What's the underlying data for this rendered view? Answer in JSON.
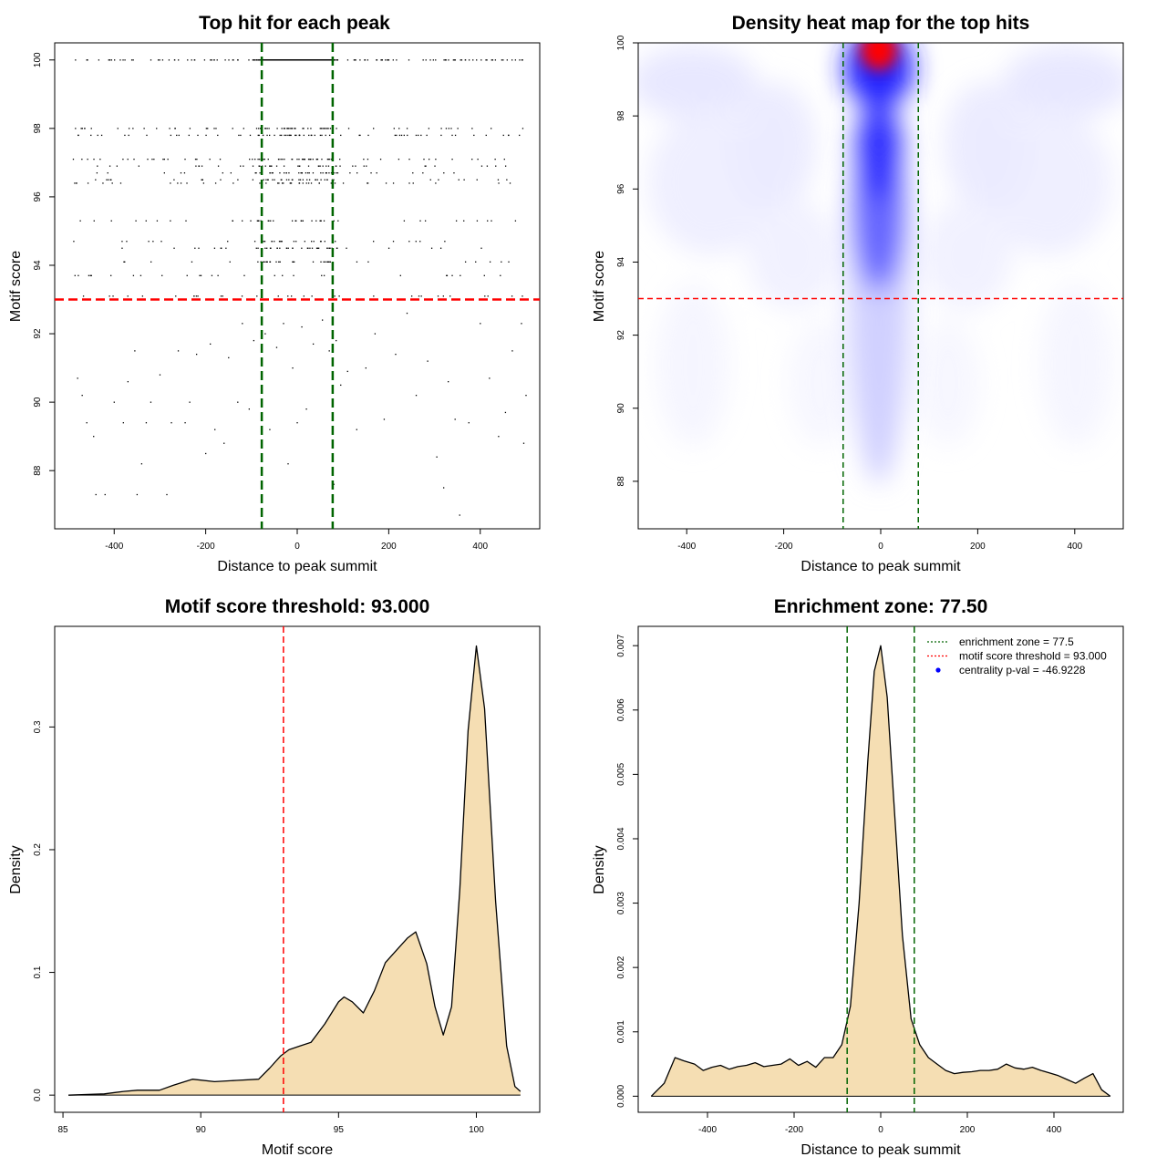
{
  "figure": {
    "panels": [
      "scatter",
      "heatmap",
      "score_density",
      "distance_density"
    ]
  },
  "chart_data": [
    {
      "id": "scatter",
      "type": "scatter",
      "title": "Top hit for each peak",
      "xlabel": "Distance to peak summit",
      "ylabel": "Motif score",
      "xlim": [
        -530,
        530
      ],
      "ylim": [
        86.3,
        100.5
      ],
      "xticks": [
        -400,
        -200,
        0,
        200,
        400
      ],
      "yticks": [
        88,
        90,
        92,
        94,
        96,
        98,
        100
      ],
      "score_levels": [
        100,
        98,
        97.8,
        97.1,
        96.9,
        96.7,
        96.5,
        96.4,
        95.3,
        94.7,
        94.5,
        94.1,
        93.7,
        93.1
      ],
      "hlines": [
        {
          "y": 93.0,
          "color": "#ff0000"
        }
      ],
      "vlines": [
        {
          "x": -77.5,
          "color": "#006400"
        },
        {
          "x": 77.5,
          "color": "#006400"
        }
      ],
      "scattered_points": [
        [
          -480,
          90.7
        ],
        [
          -470,
          90.2
        ],
        [
          -460,
          89.4
        ],
        [
          -445,
          89.0
        ],
        [
          -440,
          87.3
        ],
        [
          -420,
          87.3
        ],
        [
          -400,
          90.0
        ],
        [
          -380,
          89.4
        ],
        [
          -370,
          90.6
        ],
        [
          -355,
          91.5
        ],
        [
          -350,
          87.3
        ],
        [
          -340,
          88.2
        ],
        [
          -330,
          89.4
        ],
        [
          -320,
          90.0
        ],
        [
          -300,
          90.8
        ],
        [
          -285,
          87.3
        ],
        [
          -275,
          89.4
        ],
        [
          -260,
          91.5
        ],
        [
          -245,
          89.4
        ],
        [
          -235,
          90.0
        ],
        [
          -220,
          91.4
        ],
        [
          -200,
          88.5
        ],
        [
          -190,
          91.7
        ],
        [
          -180,
          89.2
        ],
        [
          -160,
          88.8
        ],
        [
          -150,
          91.3
        ],
        [
          -130,
          90.0
        ],
        [
          -120,
          92.3
        ],
        [
          -105,
          89.8
        ],
        [
          -95,
          91.8
        ],
        [
          -70,
          92.0
        ],
        [
          -60,
          89.2
        ],
        [
          -45,
          91.6
        ],
        [
          -30,
          92.3
        ],
        [
          -20,
          88.2
        ],
        [
          -10,
          91.0
        ],
        [
          0,
          89.4
        ],
        [
          10,
          92.2
        ],
        [
          20,
          89.8
        ],
        [
          35,
          91.7
        ],
        [
          55,
          92.4
        ],
        [
          70,
          91.5
        ],
        [
          80,
          87.6
        ],
        [
          85,
          91.8
        ],
        [
          95,
          90.5
        ],
        [
          110,
          90.9
        ],
        [
          130,
          89.2
        ],
        [
          150,
          91.0
        ],
        [
          170,
          92.0
        ],
        [
          190,
          89.5
        ],
        [
          215,
          91.4
        ],
        [
          240,
          92.6
        ],
        [
          260,
          90.2
        ],
        [
          285,
          91.2
        ],
        [
          305,
          88.4
        ],
        [
          320,
          87.5
        ],
        [
          330,
          90.6
        ],
        [
          345,
          89.5
        ],
        [
          355,
          86.7
        ],
        [
          375,
          89.4
        ],
        [
          400,
          92.3
        ],
        [
          420,
          90.7
        ],
        [
          440,
          89.0
        ],
        [
          455,
          89.7
        ],
        [
          470,
          91.5
        ],
        [
          490,
          92.3
        ],
        [
          495,
          88.8
        ],
        [
          500,
          90.2
        ]
      ]
    },
    {
      "id": "heatmap",
      "type": "heatmap",
      "title": "Density heat map for the top hits",
      "xlabel": "Distance to peak summit",
      "ylabel": "Motif score",
      "xlim": [
        -500,
        500
      ],
      "ylim": [
        86.7,
        100
      ],
      "xticks": [
        -400,
        -200,
        0,
        200,
        400
      ],
      "yticks": [
        88,
        90,
        92,
        94,
        96,
        98,
        100
      ],
      "colors": [
        "#ffffff",
        "#0000ff",
        "#ff0000"
      ],
      "hlines": [
        {
          "y": 93.0,
          "color": "#ff0000"
        }
      ],
      "vlines": [
        {
          "x": -77.5,
          "color": "#006400"
        },
        {
          "x": 77.5,
          "color": "#006400"
        }
      ]
    },
    {
      "id": "score_density",
      "type": "area",
      "title": "Motif score threshold: 93.000",
      "xlabel": "Motif score",
      "ylabel": "Density",
      "xlim": [
        84.7,
        102.3
      ],
      "ylim": [
        -0.014,
        0.382
      ],
      "xticks": [
        85,
        90,
        95,
        100
      ],
      "yticks": [
        0.0,
        0.1,
        0.2,
        0.3
      ],
      "fill": "#f5deb3",
      "vlines": [
        {
          "x": 93.0,
          "color": "#ff0000"
        }
      ],
      "x": [
        85.2,
        86.5,
        87.2,
        87.7,
        88.5,
        89.0,
        89.7,
        90.5,
        91.3,
        92.1,
        92.5,
        92.9,
        93.2,
        93.6,
        94.0,
        94.5,
        95.0,
        95.2,
        95.5,
        95.9,
        96.3,
        96.7,
        97.1,
        97.5,
        97.8,
        98.2,
        98.5,
        98.8,
        99.1,
        99.4,
        99.7,
        100.0,
        100.3,
        100.7,
        101.1,
        101.4,
        101.6
      ],
      "y": [
        0.0,
        0.001,
        0.003,
        0.004,
        0.004,
        0.008,
        0.013,
        0.011,
        0.012,
        0.013,
        0.022,
        0.032,
        0.037,
        0.04,
        0.043,
        0.058,
        0.076,
        0.08,
        0.076,
        0.067,
        0.085,
        0.108,
        0.118,
        0.128,
        0.133,
        0.107,
        0.072,
        0.049,
        0.072,
        0.167,
        0.297,
        0.366,
        0.315,
        0.158,
        0.04,
        0.007,
        0.003
      ]
    },
    {
      "id": "distance_density",
      "type": "area",
      "title": "Enrichment zone: 77.50",
      "xlabel": "Distance to peak summit",
      "ylabel": "Density",
      "xlim": [
        -560,
        560
      ],
      "ylim": [
        -0.00025,
        0.0073
      ],
      "xticks": [
        -400,
        -200,
        0,
        200,
        400
      ],
      "yticks": [
        0.0,
        0.001,
        0.002,
        0.003,
        0.004,
        0.005,
        0.006,
        0.007
      ],
      "fill": "#f5deb3",
      "vlines": [
        {
          "x": -77.5,
          "color": "#006400"
        },
        {
          "x": 77.5,
          "color": "#006400"
        }
      ],
      "legend": {
        "position": "top-right",
        "entries": [
          {
            "label": "enrichment zone = 77.5",
            "color": "#006400",
            "style": "dotted-line"
          },
          {
            "label": "motif score threshold = 93.000",
            "color": "#ff0000",
            "style": "dotted-line"
          },
          {
            "label": "centrality p-val = -46.9228",
            "color": "#0000ff",
            "style": "point"
          }
        ]
      },
      "x": [
        -530,
        -500,
        -475,
        -455,
        -430,
        -410,
        -390,
        -370,
        -350,
        -330,
        -310,
        -290,
        -270,
        -250,
        -230,
        -210,
        -190,
        -170,
        -150,
        -130,
        -110,
        -90,
        -70,
        -50,
        -30,
        -15,
        0,
        15,
        30,
        50,
        70,
        90,
        110,
        130,
        150,
        170,
        190,
        210,
        230,
        250,
        270,
        290,
        310,
        330,
        350,
        370,
        390,
        410,
        430,
        450,
        470,
        490,
        510,
        530
      ],
      "y": [
        0.0,
        0.0002,
        0.0006,
        0.00055,
        0.0005,
        0.0004,
        0.00045,
        0.00048,
        0.00042,
        0.00046,
        0.00048,
        0.00052,
        0.00046,
        0.00048,
        0.0005,
        0.00058,
        0.00048,
        0.00054,
        0.00045,
        0.0006,
        0.0006,
        0.0008,
        0.0014,
        0.003,
        0.0052,
        0.0066,
        0.007,
        0.0062,
        0.0046,
        0.0025,
        0.0012,
        0.0008,
        0.0006,
        0.0005,
        0.0004,
        0.00035,
        0.00037,
        0.00038,
        0.0004,
        0.0004,
        0.00042,
        0.0005,
        0.00044,
        0.00042,
        0.00045,
        0.0004,
        0.00036,
        0.00032,
        0.00026,
        0.0002,
        0.00028,
        0.00035,
        0.0001,
        0.0
      ]
    }
  ]
}
